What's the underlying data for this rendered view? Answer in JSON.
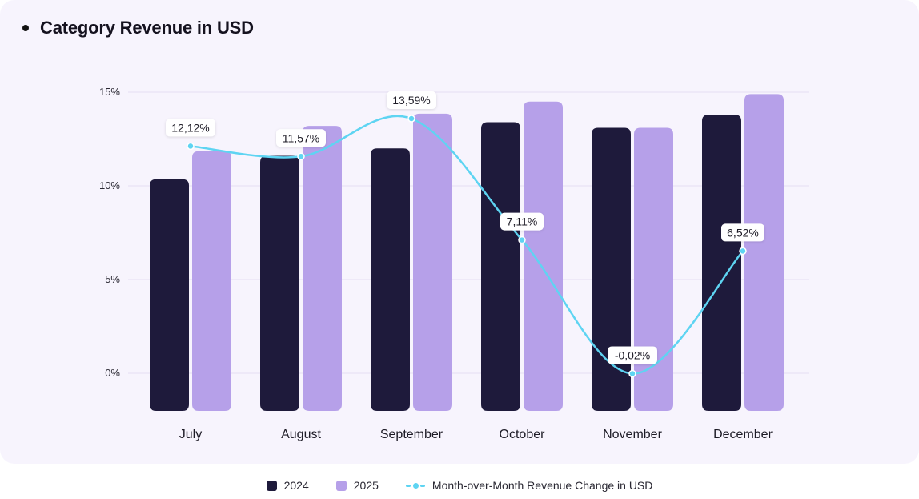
{
  "chart_data": {
    "type": "bar",
    "title": "Category Revenue in USD",
    "categories": [
      "July",
      "August",
      "September",
      "October",
      "November",
      "December"
    ],
    "y_ticks": [
      "15%",
      "10%",
      "5%",
      "0%"
    ],
    "ylim": [
      -2,
      16.5
    ],
    "grid": true,
    "legend_position": "bottom",
    "series": [
      {
        "name": "2024",
        "type": "bar",
        "color": "#1e1a3b",
        "values": [
          10.35,
          11.6,
          12.0,
          13.4,
          13.1,
          13.8
        ]
      },
      {
        "name": "2025",
        "type": "bar",
        "color": "#b6a0e9",
        "values": [
          11.85,
          13.2,
          13.85,
          14.5,
          13.1,
          14.9
        ]
      },
      {
        "name": "Month-over-Month Revenue Change in USD",
        "type": "line",
        "color": "#5ed4f2",
        "values": [
          12.12,
          11.57,
          13.59,
          7.11,
          -0.02,
          6.52
        ],
        "labels": [
          "12,12%",
          "11,57%",
          "13,59%",
          "7,11%",
          "-0,02%",
          "6,52%"
        ]
      }
    ]
  },
  "legend": {
    "items": [
      {
        "label": "2024",
        "color": "#1e1a3b"
      },
      {
        "label": "2025",
        "color": "#b6a0e9"
      }
    ],
    "line_label": "Month-over-Month Revenue Change in USD",
    "line_color": "#5ed4f2"
  }
}
